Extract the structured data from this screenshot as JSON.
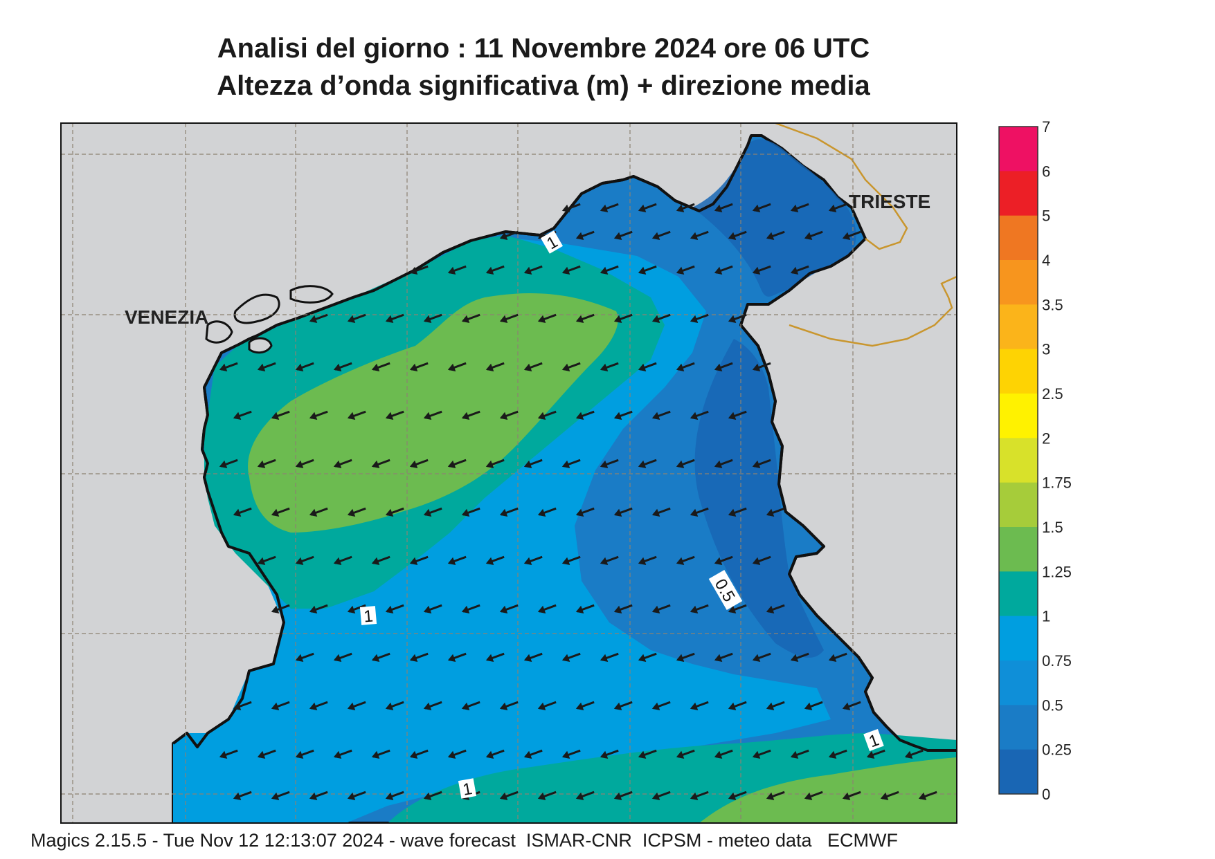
{
  "title_line1": "Analisi del giorno :  11 Novembre  2024   ore 06 UTC",
  "title_line2": "Altezza d’onda significativa (m) + direzione media",
  "footer": "Magics 2.15.5 - Tue Nov 12 12:13:07 2024 - wave forecast  ISMAR-CNR  ICPSM - meteo data   ECMWF",
  "places": {
    "venezia": "VENEZIA",
    "trieste": "TRIESTE"
  },
  "contour_labels": [
    "1",
    "1",
    "0.5",
    "1",
    "1"
  ],
  "map": {
    "land_color": "#d2d3d5",
    "coastline_color": "#111111",
    "border_color": "#c9962e",
    "arrow_direction": "towards south-west",
    "arrow_color": "#1a1a1a"
  },
  "legend": {
    "labels": [
      "7",
      "6",
      "5",
      "4",
      "3.5",
      "3",
      "2.5",
      "2",
      "1.75",
      "1.5",
      "1.25",
      "1",
      "0.75",
      "0.5",
      "0.25",
      "0"
    ],
    "colors": [
      "#ee1163",
      "#ec1f26",
      "#ef7722",
      "#f7951e",
      "#fbb41a",
      "#fed303",
      "#fff200",
      "#d8e12a",
      "#a6cc3a",
      "#6cbb50",
      "#00a99d",
      "#009ee0",
      "#0f8fd8",
      "#1a7cc6",
      "#1966b4"
    ]
  }
}
